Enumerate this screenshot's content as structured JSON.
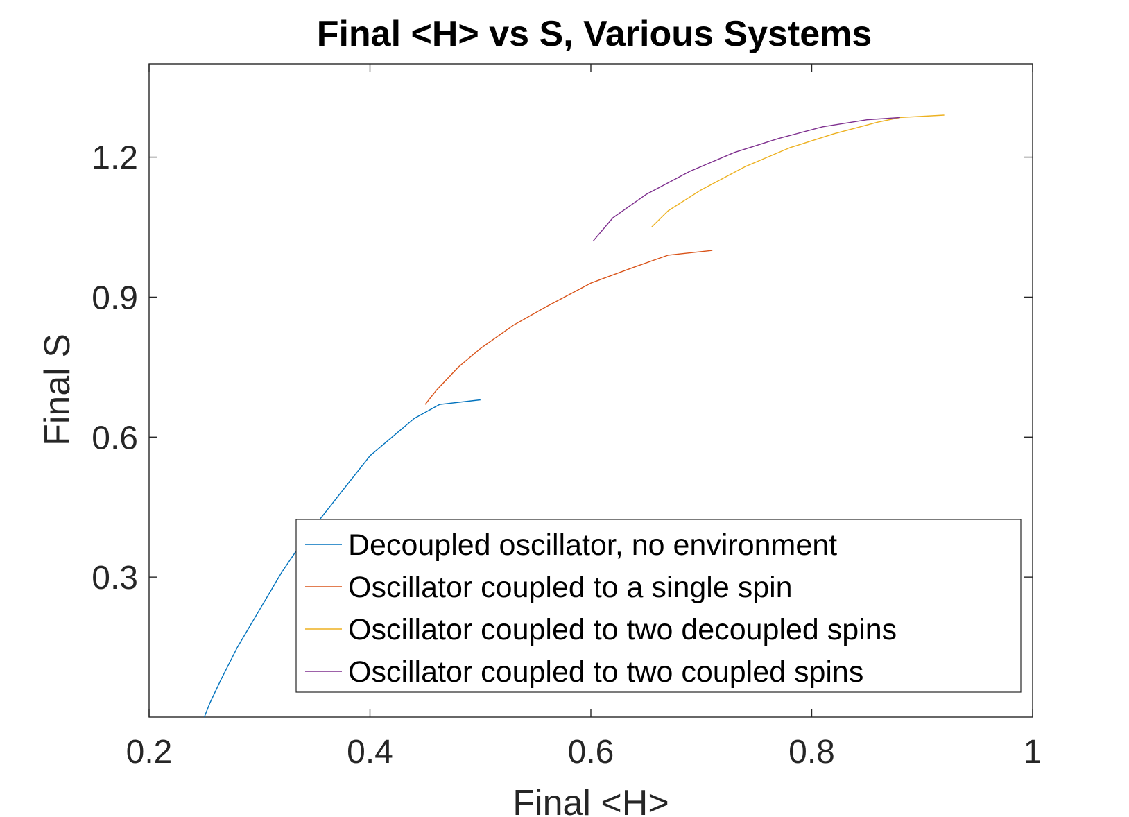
{
  "chart_data": {
    "type": "line",
    "title": "Final <H> vs S, Various Systems",
    "xlabel": "Final <H>",
    "ylabel": "Final S",
    "xlim": [
      0.2,
      1.0
    ],
    "ylim": [
      0.0,
      1.4
    ],
    "xticks": [
      0.2,
      0.4,
      0.6,
      0.8,
      1.0
    ],
    "xtick_labels": [
      "0.2",
      "0.4",
      "0.6",
      "0.8",
      "1"
    ],
    "yticks": [
      0.3,
      0.6,
      0.9,
      1.2
    ],
    "ytick_labels": [
      "0.3",
      "0.6",
      "0.9",
      "1.2"
    ],
    "grid": false,
    "legend_position": "bottom-right",
    "series": [
      {
        "name": "Decoupled oscillator, no environment",
        "color": "#0072BD",
        "points": [
          [
            0.25,
            0.0
          ],
          [
            0.255,
            0.03
          ],
          [
            0.265,
            0.08
          ],
          [
            0.28,
            0.15
          ],
          [
            0.3,
            0.23
          ],
          [
            0.32,
            0.31
          ],
          [
            0.34,
            0.38
          ],
          [
            0.36,
            0.44
          ],
          [
            0.38,
            0.5
          ],
          [
            0.4,
            0.56
          ],
          [
            0.42,
            0.6
          ],
          [
            0.44,
            0.64
          ],
          [
            0.463,
            0.67
          ],
          [
            0.5,
            0.68
          ]
        ]
      },
      {
        "name": "Oscillator coupled to a single spin",
        "color": "#D95319",
        "points": [
          [
            0.45,
            0.67
          ],
          [
            0.46,
            0.7
          ],
          [
            0.48,
            0.75
          ],
          [
            0.5,
            0.79
          ],
          [
            0.53,
            0.84
          ],
          [
            0.56,
            0.88
          ],
          [
            0.6,
            0.93
          ],
          [
            0.64,
            0.965
          ],
          [
            0.67,
            0.99
          ],
          [
            0.71,
            1.0
          ]
        ]
      },
      {
        "name": "Oscillator coupled to two decoupled spins",
        "color": "#EDB120",
        "points": [
          [
            0.655,
            1.05
          ],
          [
            0.67,
            1.085
          ],
          [
            0.7,
            1.13
          ],
          [
            0.74,
            1.18
          ],
          [
            0.78,
            1.22
          ],
          [
            0.82,
            1.25
          ],
          [
            0.86,
            1.275
          ],
          [
            0.88,
            1.285
          ],
          [
            0.92,
            1.29
          ]
        ]
      },
      {
        "name": "Oscillator coupled to two coupled spins",
        "color": "#7E2F8E",
        "points": [
          [
            0.602,
            1.02
          ],
          [
            0.62,
            1.07
          ],
          [
            0.65,
            1.12
          ],
          [
            0.69,
            1.17
          ],
          [
            0.73,
            1.21
          ],
          [
            0.77,
            1.24
          ],
          [
            0.81,
            1.265
          ],
          [
            0.85,
            1.28
          ],
          [
            0.88,
            1.285
          ]
        ]
      }
    ]
  }
}
